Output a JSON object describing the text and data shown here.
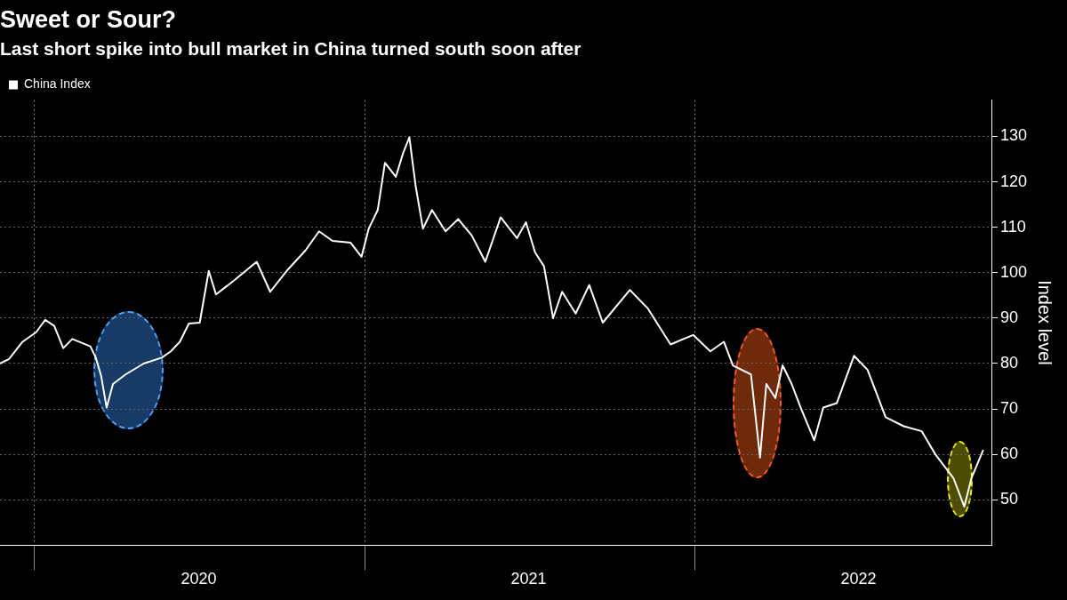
{
  "chart_data": {
    "type": "line",
    "title": "Sweet or Sour?",
    "subtitle": "Last short spike into bull market in China turned south soon after",
    "ylabel": "Index level",
    "x": [
      "2019-11-24",
      "2019-12-04",
      "2019-12-19",
      "2020-01-03",
      "2020-01-13",
      "2020-01-23",
      "2020-02-02",
      "2020-02-12",
      "2020-03-03",
      "2020-03-09",
      "2020-03-15",
      "2020-03-21",
      "2020-03-28",
      "2020-04-11",
      "2020-05-01",
      "2020-05-21",
      "2020-05-31",
      "2020-06-10",
      "2020-06-20",
      "2020-07-02",
      "2020-07-12",
      "2020-07-20",
      "2020-08-09",
      "2020-09-03",
      "2020-09-18",
      "2020-10-08",
      "2020-10-27",
      "2020-11-11",
      "2020-11-26",
      "2020-12-16",
      "2020-12-28",
      "2021-01-05",
      "2021-01-15",
      "2021-01-23",
      "2021-02-04",
      "2021-02-12",
      "2021-02-19",
      "2021-02-26",
      "2021-03-06",
      "2021-03-16",
      "2021-03-31",
      "2021-04-14",
      "2021-04-29",
      "2021-05-14",
      "2021-05-31",
      "2021-06-18",
      "2021-06-28",
      "2021-07-08",
      "2021-07-18",
      "2021-07-28",
      "2021-08-07",
      "2021-08-22",
      "2021-09-06",
      "2021-09-21",
      "2021-10-21",
      "2021-11-10",
      "2021-12-05",
      "2021-12-30",
      "2022-01-18",
      "2022-02-02",
      "2022-02-12",
      "2022-03-04",
      "2022-03-14",
      "2022-03-21",
      "2022-03-31",
      "2022-04-08",
      "2022-04-18",
      "2022-04-28",
      "2022-05-13",
      "2022-05-23",
      "2022-06-07",
      "2022-06-26",
      "2022-07-11",
      "2022-07-31",
      "2022-08-20",
      "2022-09-09",
      "2022-09-24",
      "2022-10-14",
      "2022-10-26",
      "2022-11-03",
      "2022-11-16"
    ],
    "series": [
      {
        "name": "China Index",
        "color": "#ffffff",
        "values": [
          80,
          81,
          84.8,
          86.9,
          89.6,
          88.3,
          83.4,
          85.4,
          83.8,
          81.3,
          77.2,
          70.3,
          75.5,
          77.6,
          80,
          81.3,
          82.7,
          84.8,
          88.8,
          89,
          100.4,
          95.2,
          98.3,
          102.4,
          95.8,
          100.8,
          104.9,
          109.1,
          107,
          106.6,
          103.5,
          109.7,
          113.8,
          124.2,
          121.1,
          126.3,
          129.8,
          119,
          109.7,
          113.8,
          109.1,
          111.8,
          108.2,
          102.4,
          112.2,
          107.6,
          111.1,
          104.5,
          101.4,
          90,
          95.8,
          91,
          97.3,
          89,
          96.2,
          92.1,
          84.2,
          86.3,
          82.7,
          84.8,
          79.6,
          77.6,
          59.3,
          75.5,
          72.4,
          79.6,
          75.5,
          70.3,
          63.1,
          70.3,
          71.3,
          81.7,
          78.6,
          68.2,
          66.2,
          65.1,
          60,
          54.8,
          48.5,
          54.8,
          61
        ]
      }
    ],
    "xlim": [
      "2019-11-24",
      "2022-11-26"
    ],
    "xticks": [
      {
        "value": "2020-01-01",
        "label": null
      },
      {
        "value": "2020-07-01",
        "label": "2020"
      },
      {
        "value": "2021-01-01",
        "label": null
      },
      {
        "value": "2021-07-01",
        "label": "2021"
      },
      {
        "value": "2022-01-01",
        "label": null
      },
      {
        "value": "2022-07-01",
        "label": "2022"
      }
    ],
    "ylim": [
      40,
      138
    ],
    "yticks": [
      50,
      60,
      70,
      80,
      90,
      100,
      110,
      120,
      130
    ],
    "grid": true,
    "legend": "top left",
    "marker": "none",
    "line_style": "solid"
  }
}
